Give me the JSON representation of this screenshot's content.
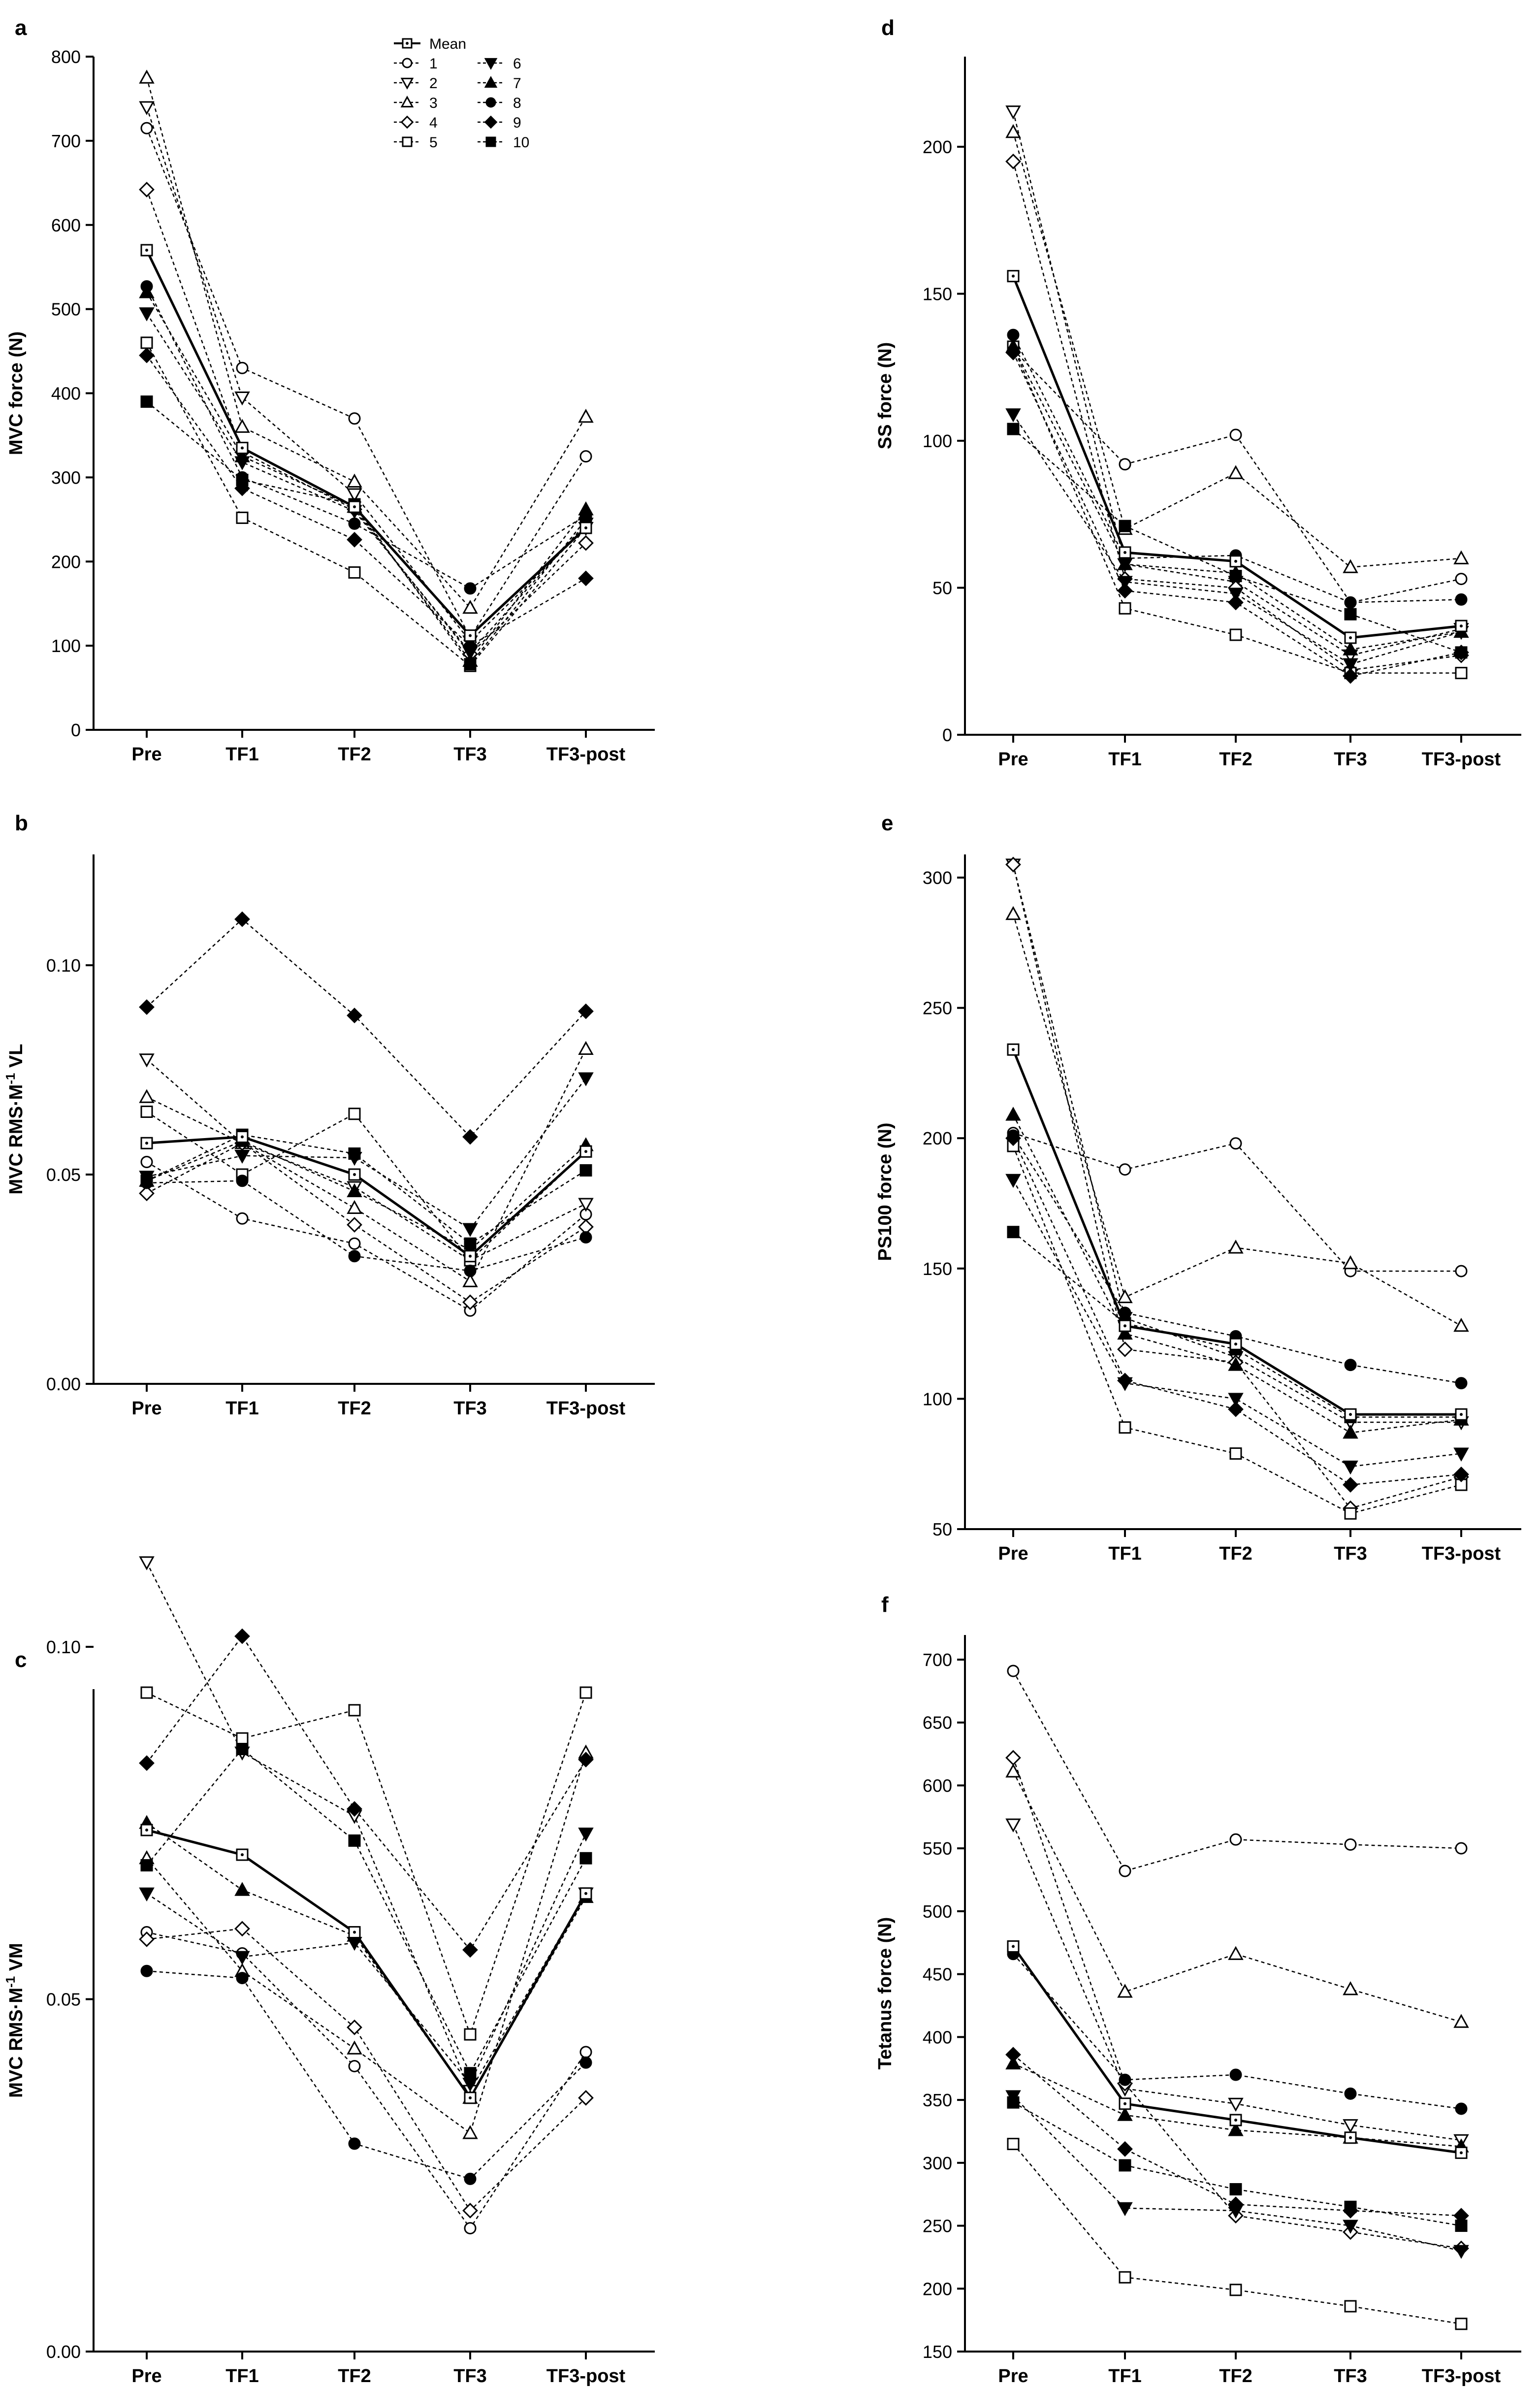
{
  "figure": {
    "categories": [
      "Pre",
      "TF1",
      "TF2",
      "TF3",
      "TF3-post"
    ],
    "legend": {
      "entries": [
        {
          "key": "mean",
          "label": "Mean"
        },
        {
          "key": "s1",
          "label": "1"
        },
        {
          "key": "s2",
          "label": "2"
        },
        {
          "key": "s3",
          "label": "3"
        },
        {
          "key": "s4",
          "label": "4"
        },
        {
          "key": "s5",
          "label": "5"
        },
        {
          "key": "s6",
          "label": "6"
        },
        {
          "key": "s7",
          "label": "7"
        },
        {
          "key": "s8",
          "label": "8"
        },
        {
          "key": "s9",
          "label": "9"
        },
        {
          "key": "s10",
          "label": "10"
        }
      ]
    }
  },
  "chart_data": [
    {
      "type": "line",
      "panel": "a",
      "title": "",
      "xlabel": "",
      "ylabel": "MVC force (N)",
      "ylabel_sup": "",
      "ylabel_after": "",
      "ylim": [
        0,
        800
      ],
      "yticks": [
        0,
        100,
        200,
        300,
        400,
        500,
        600,
        700,
        800
      ],
      "ytick_labels": [
        "0",
        "100",
        "200",
        "300",
        "400",
        "500",
        "600",
        "700",
        "800"
      ],
      "categories": [
        "Pre",
        "TF1",
        "TF2",
        "TF3",
        "TF3-post"
      ],
      "legend_position": "top-center",
      "series": [
        {
          "name": "Mean",
          "values": [
            570,
            335,
            265,
            112,
            240
          ]
        },
        {
          "name": "1",
          "values": [
            715,
            430,
            370,
            110,
            325
          ]
        },
        {
          "name": "2",
          "values": [
            740,
            395,
            280,
            105,
            240
          ]
        },
        {
          "name": "3",
          "values": [
            775,
            360,
            295,
            145,
            372
          ]
        },
        {
          "name": "4",
          "values": [
            642,
            330,
            262,
            90,
            222
          ]
        },
        {
          "name": "5",
          "values": [
            460,
            252,
            187,
            76,
            240
          ]
        },
        {
          "name": "6",
          "values": [
            495,
            318,
            260,
            92,
            245
          ]
        },
        {
          "name": "7",
          "values": [
            520,
            325,
            265,
            82,
            262
          ]
        },
        {
          "name": "8",
          "values": [
            527,
            300,
            245,
            168,
            255
          ]
        },
        {
          "name": "9",
          "values": [
            445,
            287,
            226,
            100,
            180
          ]
        },
        {
          "name": "10",
          "values": [
            390,
            297,
            268,
            78,
            250
          ]
        }
      ]
    },
    {
      "type": "line",
      "panel": "b",
      "title": "",
      "xlabel": "",
      "ylabel": "MVC RMS·M",
      "ylabel_sup": "-1",
      "ylabel_after": " VL",
      "ylim": [
        0,
        0.12
      ],
      "yticks": [
        0,
        0.05,
        0.1
      ],
      "ytick_labels": [
        "0.00",
        "0.05",
        "0.10"
      ],
      "categories": [
        "Pre",
        "TF1",
        "TF2",
        "TF3",
        "TF3-post"
      ],
      "series": [
        {
          "name": "Mean",
          "values": [
            0.0575,
            0.059,
            0.05,
            0.0305,
            0.0555
          ]
        },
        {
          "name": "1",
          "values": [
            0.053,
            0.0395,
            0.0335,
            0.0175,
            0.0405
          ]
        },
        {
          "name": "2",
          "values": [
            0.0775,
            0.0575,
            0.047,
            0.0295,
            0.043
          ]
        },
        {
          "name": "3",
          "values": [
            0.0685,
            0.0575,
            0.042,
            0.0245,
            0.08
          ]
        },
        {
          "name": "4",
          "values": [
            0.0455,
            0.0575,
            0.038,
            0.0195,
            0.0375
          ]
        },
        {
          "name": "5",
          "values": [
            0.065,
            0.05,
            0.0645,
            0.0295,
            0.0555
          ]
        },
        {
          "name": "6",
          "values": [
            0.0495,
            0.0545,
            0.054,
            0.037,
            0.073
          ]
        },
        {
          "name": "7",
          "values": [
            0.0485,
            0.058,
            0.046,
            0.032,
            0.057
          ]
        },
        {
          "name": "8",
          "values": [
            0.048,
            0.0485,
            0.0305,
            0.027,
            0.035
          ]
        },
        {
          "name": "9",
          "values": [
            0.09,
            0.111,
            0.088,
            0.059,
            0.089
          ]
        },
        {
          "name": "10",
          "values": [
            0.0485,
            0.0595,
            0.055,
            0.0335,
            0.051
          ]
        }
      ]
    },
    {
      "type": "line",
      "panel": "c",
      "title": "",
      "xlabel": "",
      "ylabel": "MVC RMS·M",
      "ylabel_sup": "-1",
      "ylabel_after": " VM",
      "ylim": [
        0,
        0.12
      ],
      "yticks": [
        0,
        0.05,
        0.1
      ],
      "ytick_labels": [
        "0.00",
        "0.05",
        "0.10"
      ],
      "categories": [
        "Pre",
        "TF1",
        "TF2",
        "TF3",
        "TF3-post"
      ],
      "series": [
        {
          "name": "Mean",
          "values": [
            0.074,
            0.0705,
            0.0595,
            0.036,
            0.065
          ]
        },
        {
          "name": "1",
          "values": [
            0.0595,
            0.0565,
            0.0405,
            0.0175,
            0.0425
          ]
        },
        {
          "name": "2",
          "values": [
            0.112,
            0.085,
            0.076,
            0.037,
            0.065
          ]
        },
        {
          "name": "3",
          "values": [
            0.07,
            0.054,
            0.043,
            0.031,
            0.085
          ]
        },
        {
          "name": "4",
          "values": [
            0.0585,
            0.06,
            0.046,
            0.02,
            0.036
          ]
        },
        {
          "name": "5",
          "values": [
            0.0935,
            0.087,
            0.091,
            0.045,
            0.0935
          ]
        },
        {
          "name": "6",
          "values": [
            0.065,
            0.056,
            0.058,
            0.038,
            0.0735
          ]
        },
        {
          "name": "7",
          "values": [
            0.075,
            0.0655,
            0.059,
            0.036,
            0.0645
          ]
        },
        {
          "name": "8",
          "values": [
            0.054,
            0.053,
            0.0295,
            0.0245,
            0.041
          ]
        },
        {
          "name": "9",
          "values": [
            0.0835,
            0.1015,
            0.077,
            0.057,
            0.084
          ]
        },
        {
          "name": "10",
          "values": [
            0.069,
            0.0855,
            0.0725,
            0.0395,
            0.07
          ]
        }
      ]
    },
    {
      "type": "line",
      "panel": "d",
      "title": "",
      "xlabel": "",
      "ylabel": "SS force (N)",
      "ylabel_sup": "",
      "ylabel_after": "",
      "ylim": [
        0,
        230
      ],
      "yticks": [
        0,
        50,
        100,
        150,
        200
      ],
      "ytick_labels": [
        "0",
        "50",
        "100",
        "150",
        "200"
      ],
      "categories": [
        "Pre",
        "TF1",
        "TF2",
        "TF3",
        "TF3-post"
      ],
      "series": [
        {
          "name": "Mean",
          "values": [
            156,
            62,
            59,
            33,
            37
          ]
        },
        {
          "name": "1",
          "values": [
            131,
            92,
            102,
            45,
            53
          ]
        },
        {
          "name": "2",
          "values": [
            212,
            58,
            52,
            27,
            36
          ]
        },
        {
          "name": "3",
          "values": [
            205,
            70,
            89,
            57,
            60
          ]
        },
        {
          "name": "4",
          "values": [
            195,
            53,
            50,
            22,
            27
          ]
        },
        {
          "name": "5",
          "values": [
            132,
            43,
            34,
            21,
            21
          ]
        },
        {
          "name": "6",
          "values": [
            109,
            52,
            48,
            24,
            35
          ]
        },
        {
          "name": "7",
          "values": [
            132,
            58,
            55,
            29,
            35
          ]
        },
        {
          "name": "8",
          "values": [
            136,
            60,
            61,
            45,
            46
          ]
        },
        {
          "name": "9",
          "values": [
            130,
            49,
            45,
            20,
            28
          ]
        },
        {
          "name": "10",
          "values": [
            104,
            71,
            54,
            41,
            28
          ]
        }
      ]
    },
    {
      "type": "line",
      "panel": "e",
      "title": "",
      "xlabel": "",
      "ylabel": "PS100 force (N)",
      "ylabel_sup": "",
      "ylabel_after": "",
      "ylim": [
        50,
        310
      ],
      "yticks": [
        50,
        100,
        150,
        200,
        250,
        300
      ],
      "ytick_labels": [
        "50",
        "100",
        "150",
        "200",
        "250",
        "300"
      ],
      "categories": [
        "Pre",
        "TF1",
        "TF2",
        "TF3",
        "TF3-post"
      ],
      "series": [
        {
          "name": "Mean",
          "values": [
            234,
            128,
            121,
            94,
            94
          ]
        },
        {
          "name": "1",
          "values": [
            202,
            188,
            198,
            149,
            149
          ]
        },
        {
          "name": "2",
          "values": [
            305,
            131,
            116,
            91,
            91
          ]
        },
        {
          "name": "3",
          "values": [
            286,
            139,
            158,
            152,
            128
          ]
        },
        {
          "name": "4",
          "values": [
            305,
            119,
            114,
            58,
            70
          ]
        },
        {
          "name": "5",
          "values": [
            197,
            89,
            79,
            56,
            67
          ]
        },
        {
          "name": "6",
          "values": [
            184,
            106,
            100,
            74,
            79
          ]
        },
        {
          "name": "7",
          "values": [
            209,
            125,
            113,
            87,
            92
          ]
        },
        {
          "name": "8",
          "values": [
            201,
            133,
            124,
            113,
            106
          ]
        },
        {
          "name": "9",
          "values": [
            200,
            107,
            96,
            67,
            71
          ]
        },
        {
          "name": "10",
          "values": [
            164,
            129,
            119,
            93,
            93
          ]
        }
      ]
    },
    {
      "type": "line",
      "panel": "f",
      "title": "",
      "xlabel": "",
      "ylabel": "Tetanus force (N)",
      "ylabel_sup": "",
      "ylabel_after": "",
      "ylim": [
        150,
        700
      ],
      "yticks": [
        150,
        200,
        250,
        300,
        350,
        400,
        450,
        500,
        550,
        600,
        650,
        700
      ],
      "ytick_labels": [
        "150",
        "200",
        "250",
        "300",
        "350",
        "400",
        "450",
        "500",
        "550",
        "600",
        "650",
        "700"
      ],
      "categories": [
        "Pre",
        "TF1",
        "TF2",
        "TF3",
        "TF3-post"
      ],
      "series": [
        {
          "name": "Mean",
          "values": [
            472,
            347,
            334,
            320,
            308
          ]
        },
        {
          "name": "1",
          "values": [
            691,
            532,
            557,
            553,
            550
          ]
        },
        {
          "name": "2",
          "values": [
            569,
            359,
            347,
            330,
            318
          ]
        },
        {
          "name": "3",
          "values": [
            611,
            436,
            466,
            438,
            412
          ]
        },
        {
          "name": "4",
          "values": [
            622,
            363,
            258,
            245,
            232
          ]
        },
        {
          "name": "5",
          "values": [
            315,
            209,
            199,
            186,
            172
          ]
        },
        {
          "name": "6",
          "values": [
            353,
            264,
            262,
            250,
            230
          ]
        },
        {
          "name": "7",
          "values": [
            379,
            338,
            326,
            320,
            313
          ]
        },
        {
          "name": "8",
          "values": [
            466,
            366,
            370,
            355,
            343
          ]
        },
        {
          "name": "9",
          "values": [
            386,
            311,
            267,
            262,
            258
          ]
        },
        {
          "name": "10",
          "values": [
            348,
            298,
            279,
            265,
            250
          ]
        }
      ]
    }
  ]
}
